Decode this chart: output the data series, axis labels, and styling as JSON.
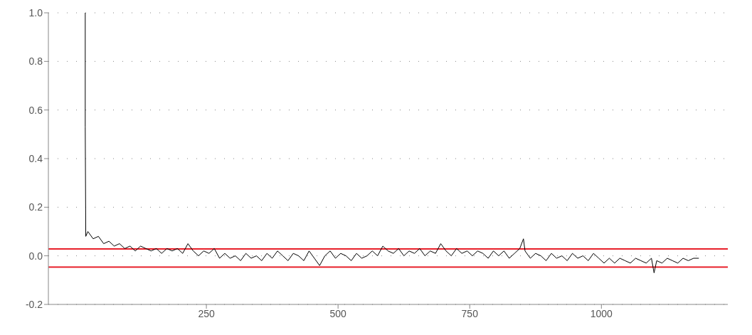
{
  "chart_data": {
    "type": "line",
    "xlim": [
      -50,
      1240
    ],
    "ylim": [
      -0.2,
      1.0
    ],
    "xticks": [
      250,
      500,
      750,
      1000
    ],
    "yticks": [
      -0.2,
      {
        "value": 0,
        "label": "0.0"
      },
      0.2,
      0.4,
      0.6,
      0.8,
      {
        "value": 1,
        "label": "1.0"
      }
    ],
    "grid": "y",
    "marker": "none",
    "line_style": "solid",
    "ref_lines": [
      {
        "axis": "y",
        "value": 0.028,
        "color": "#e8202a"
      },
      {
        "axis": "y",
        "value": -0.046,
        "color": "#e8202a"
      }
    ],
    "series": [
      {
        "color": "#000000",
        "x": [
          20,
          20,
          21,
          25,
          35,
          45,
          55,
          65,
          75,
          85,
          95,
          105,
          115,
          125,
          135,
          145,
          155,
          165,
          175,
          185,
          195,
          205,
          215,
          225,
          235,
          245,
          255,
          265,
          275,
          285,
          295,
          305,
          315,
          325,
          335,
          345,
          355,
          365,
          375,
          385,
          395,
          405,
          415,
          425,
          435,
          445,
          455,
          465,
          475,
          485,
          495,
          505,
          515,
          525,
          535,
          545,
          555,
          565,
          575,
          585,
          595,
          605,
          615,
          625,
          635,
          645,
          655,
          665,
          675,
          685,
          695,
          705,
          715,
          725,
          735,
          745,
          755,
          765,
          775,
          785,
          795,
          805,
          815,
          825,
          835,
          845,
          852,
          855,
          865,
          875,
          885,
          895,
          905,
          915,
          925,
          935,
          945,
          955,
          965,
          975,
          985,
          995,
          1005,
          1015,
          1025,
          1035,
          1045,
          1055,
          1065,
          1075,
          1085,
          1095,
          1100,
          1105,
          1115,
          1125,
          1135,
          1145,
          1155,
          1165,
          1175,
          1185
        ],
        "values": [
          1.0,
          0.53,
          0.08,
          0.1,
          0.07,
          0.08,
          0.05,
          0.06,
          0.04,
          0.05,
          0.03,
          0.04,
          0.02,
          0.04,
          0.03,
          0.02,
          0.03,
          0.01,
          0.03,
          0.02,
          0.03,
          0.01,
          0.05,
          0.02,
          0.0,
          0.02,
          0.01,
          0.03,
          -0.01,
          0.01,
          -0.01,
          0.0,
          -0.02,
          0.01,
          -0.01,
          0.0,
          -0.02,
          0.01,
          -0.01,
          0.02,
          0.0,
          -0.02,
          0.01,
          0.0,
          -0.02,
          0.02,
          -0.01,
          -0.04,
          0.0,
          0.02,
          -0.01,
          0.01,
          0.0,
          -0.02,
          0.01,
          -0.01,
          0.0,
          0.02,
          0.0,
          0.04,
          0.02,
          0.01,
          0.03,
          0.0,
          0.02,
          0.01,
          0.03,
          0.0,
          0.02,
          0.01,
          0.05,
          0.02,
          0.0,
          0.03,
          0.01,
          0.02,
          0.0,
          0.02,
          0.01,
          -0.01,
          0.02,
          0.0,
          0.02,
          -0.01,
          0.01,
          0.03,
          0.07,
          0.02,
          -0.01,
          0.01,
          0.0,
          -0.02,
          0.01,
          -0.01,
          0.0,
          -0.02,
          0.01,
          -0.01,
          0.0,
          -0.02,
          0.01,
          -0.01,
          -0.03,
          -0.01,
          -0.03,
          -0.01,
          -0.02,
          -0.03,
          -0.01,
          -0.02,
          -0.03,
          -0.01,
          -0.07,
          -0.02,
          -0.03,
          -0.01,
          -0.02,
          -0.03,
          -0.01,
          -0.02,
          -0.01,
          -0.01
        ]
      }
    ]
  }
}
